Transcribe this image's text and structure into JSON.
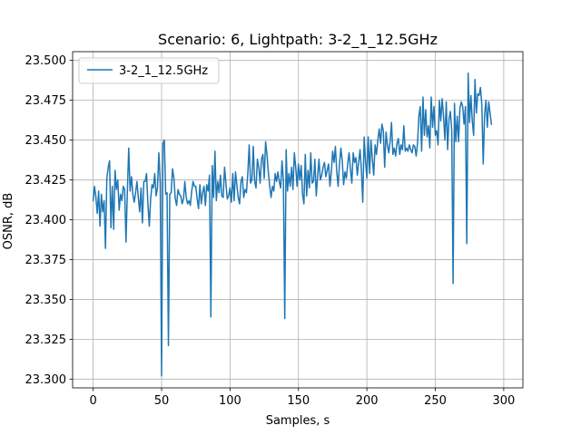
{
  "chart_data": {
    "type": "line",
    "title": "Scenario: 6, Lightpath: 3-2_1_12.5GHz",
    "xlabel": "Samples, s",
    "ylabel": "OSNR, dB",
    "xlim": [
      -15,
      314
    ],
    "ylim": [
      23.2945,
      23.5055
    ],
    "xticks": [
      0,
      50,
      100,
      150,
      200,
      250,
      300
    ],
    "xtick_labels": [
      "0",
      "50",
      "100",
      "150",
      "200",
      "250",
      "300"
    ],
    "yticks": [
      23.3,
      23.325,
      23.35,
      23.375,
      23.4,
      23.425,
      23.45,
      23.475,
      23.5
    ],
    "ytick_labels": [
      "23.300",
      "23.325",
      "23.350",
      "23.375",
      "23.400",
      "23.425",
      "23.450",
      "23.475",
      "23.500"
    ],
    "grid": true,
    "legend_position": "top-left",
    "colors": {
      "series": "#1f77b4",
      "grid": "#b0b0b0",
      "axes": "#000000"
    },
    "series": [
      {
        "name": "3-2_1_12.5GHz",
        "x_start": 0,
        "x_step": 1,
        "y": [
          23.412,
          23.421,
          23.414,
          23.404,
          23.418,
          23.396,
          23.416,
          23.405,
          23.412,
          23.382,
          23.426,
          23.433,
          23.437,
          23.395,
          23.421,
          23.394,
          23.431,
          23.419,
          23.425,
          23.406,
          23.416,
          23.412,
          23.421,
          23.419,
          23.386,
          23.418,
          23.445,
          23.418,
          23.427,
          23.416,
          23.411,
          23.417,
          23.424,
          23.414,
          23.405,
          23.42,
          23.398,
          23.424,
          23.424,
          23.429,
          23.41,
          23.396,
          23.413,
          23.422,
          23.42,
          23.429,
          23.415,
          23.42,
          23.442,
          23.423,
          23.302,
          23.448,
          23.45,
          23.416,
          23.417,
          23.321,
          23.416,
          23.417,
          23.432,
          23.426,
          23.413,
          23.409,
          23.419,
          23.416,
          23.415,
          23.41,
          23.413,
          23.424,
          23.414,
          23.41,
          23.412,
          23.409,
          23.418,
          23.424,
          23.421,
          23.421,
          23.413,
          23.407,
          23.422,
          23.41,
          23.417,
          23.421,
          23.409,
          23.422,
          23.418,
          23.428,
          23.339,
          23.434,
          23.414,
          23.443,
          23.412,
          23.424,
          23.417,
          23.428,
          23.415,
          23.414,
          23.433,
          23.423,
          23.413,
          23.415,
          23.42,
          23.411,
          23.429,
          23.412,
          23.43,
          23.422,
          23.414,
          23.41,
          23.424,
          23.427,
          23.414,
          23.419,
          23.417,
          23.429,
          23.447,
          23.423,
          23.425,
          23.446,
          23.424,
          23.42,
          23.438,
          23.433,
          23.423,
          23.438,
          23.441,
          23.426,
          23.449,
          23.441,
          23.43,
          23.421,
          23.414,
          23.421,
          23.418,
          23.429,
          23.424,
          23.43,
          23.424,
          23.42,
          23.437,
          23.424,
          23.338,
          23.444,
          23.418,
          23.429,
          23.421,
          23.433,
          23.419,
          23.442,
          23.433,
          23.421,
          23.435,
          23.425,
          23.434,
          23.416,
          23.41,
          23.441,
          23.415,
          23.431,
          23.42,
          23.442,
          23.423,
          23.424,
          23.438,
          23.415,
          23.427,
          23.438,
          23.425,
          23.428,
          23.433,
          23.436,
          23.427,
          23.431,
          23.435,
          23.421,
          23.43,
          23.443,
          23.436,
          23.446,
          23.43,
          23.421,
          23.435,
          23.445,
          23.437,
          23.422,
          23.43,
          23.426,
          23.435,
          23.442,
          23.432,
          23.423,
          23.442,
          23.436,
          23.439,
          23.428,
          23.436,
          23.444,
          23.431,
          23.411,
          23.452,
          23.437,
          23.426,
          23.452,
          23.429,
          23.45,
          23.438,
          23.428,
          23.447,
          23.441,
          23.45,
          23.457,
          23.448,
          23.46,
          23.456,
          23.433,
          23.455,
          23.447,
          23.442,
          23.449,
          23.461,
          23.441,
          23.445,
          23.44,
          23.448,
          23.451,
          23.441,
          23.447,
          23.444,
          23.459,
          23.443,
          23.445,
          23.443,
          23.447,
          23.444,
          23.442,
          23.447,
          23.446,
          23.44,
          23.448,
          23.465,
          23.471,
          23.443,
          23.477,
          23.453,
          23.469,
          23.452,
          23.459,
          23.445,
          23.477,
          23.458,
          23.471,
          23.453,
          23.456,
          23.447,
          23.475,
          23.462,
          23.476,
          23.465,
          23.45,
          23.474,
          23.444,
          23.463,
          23.468,
          23.456,
          23.36,
          23.473,
          23.449,
          23.465,
          23.449,
          23.47,
          23.474,
          23.471,
          23.46,
          23.471,
          23.385,
          23.492,
          23.461,
          23.478,
          23.462,
          23.453,
          23.488,
          23.467,
          23.479,
          23.478,
          23.483,
          23.472,
          23.435,
          23.466,
          23.475,
          23.458,
          23.474,
          23.467,
          23.46
        ]
      }
    ]
  }
}
